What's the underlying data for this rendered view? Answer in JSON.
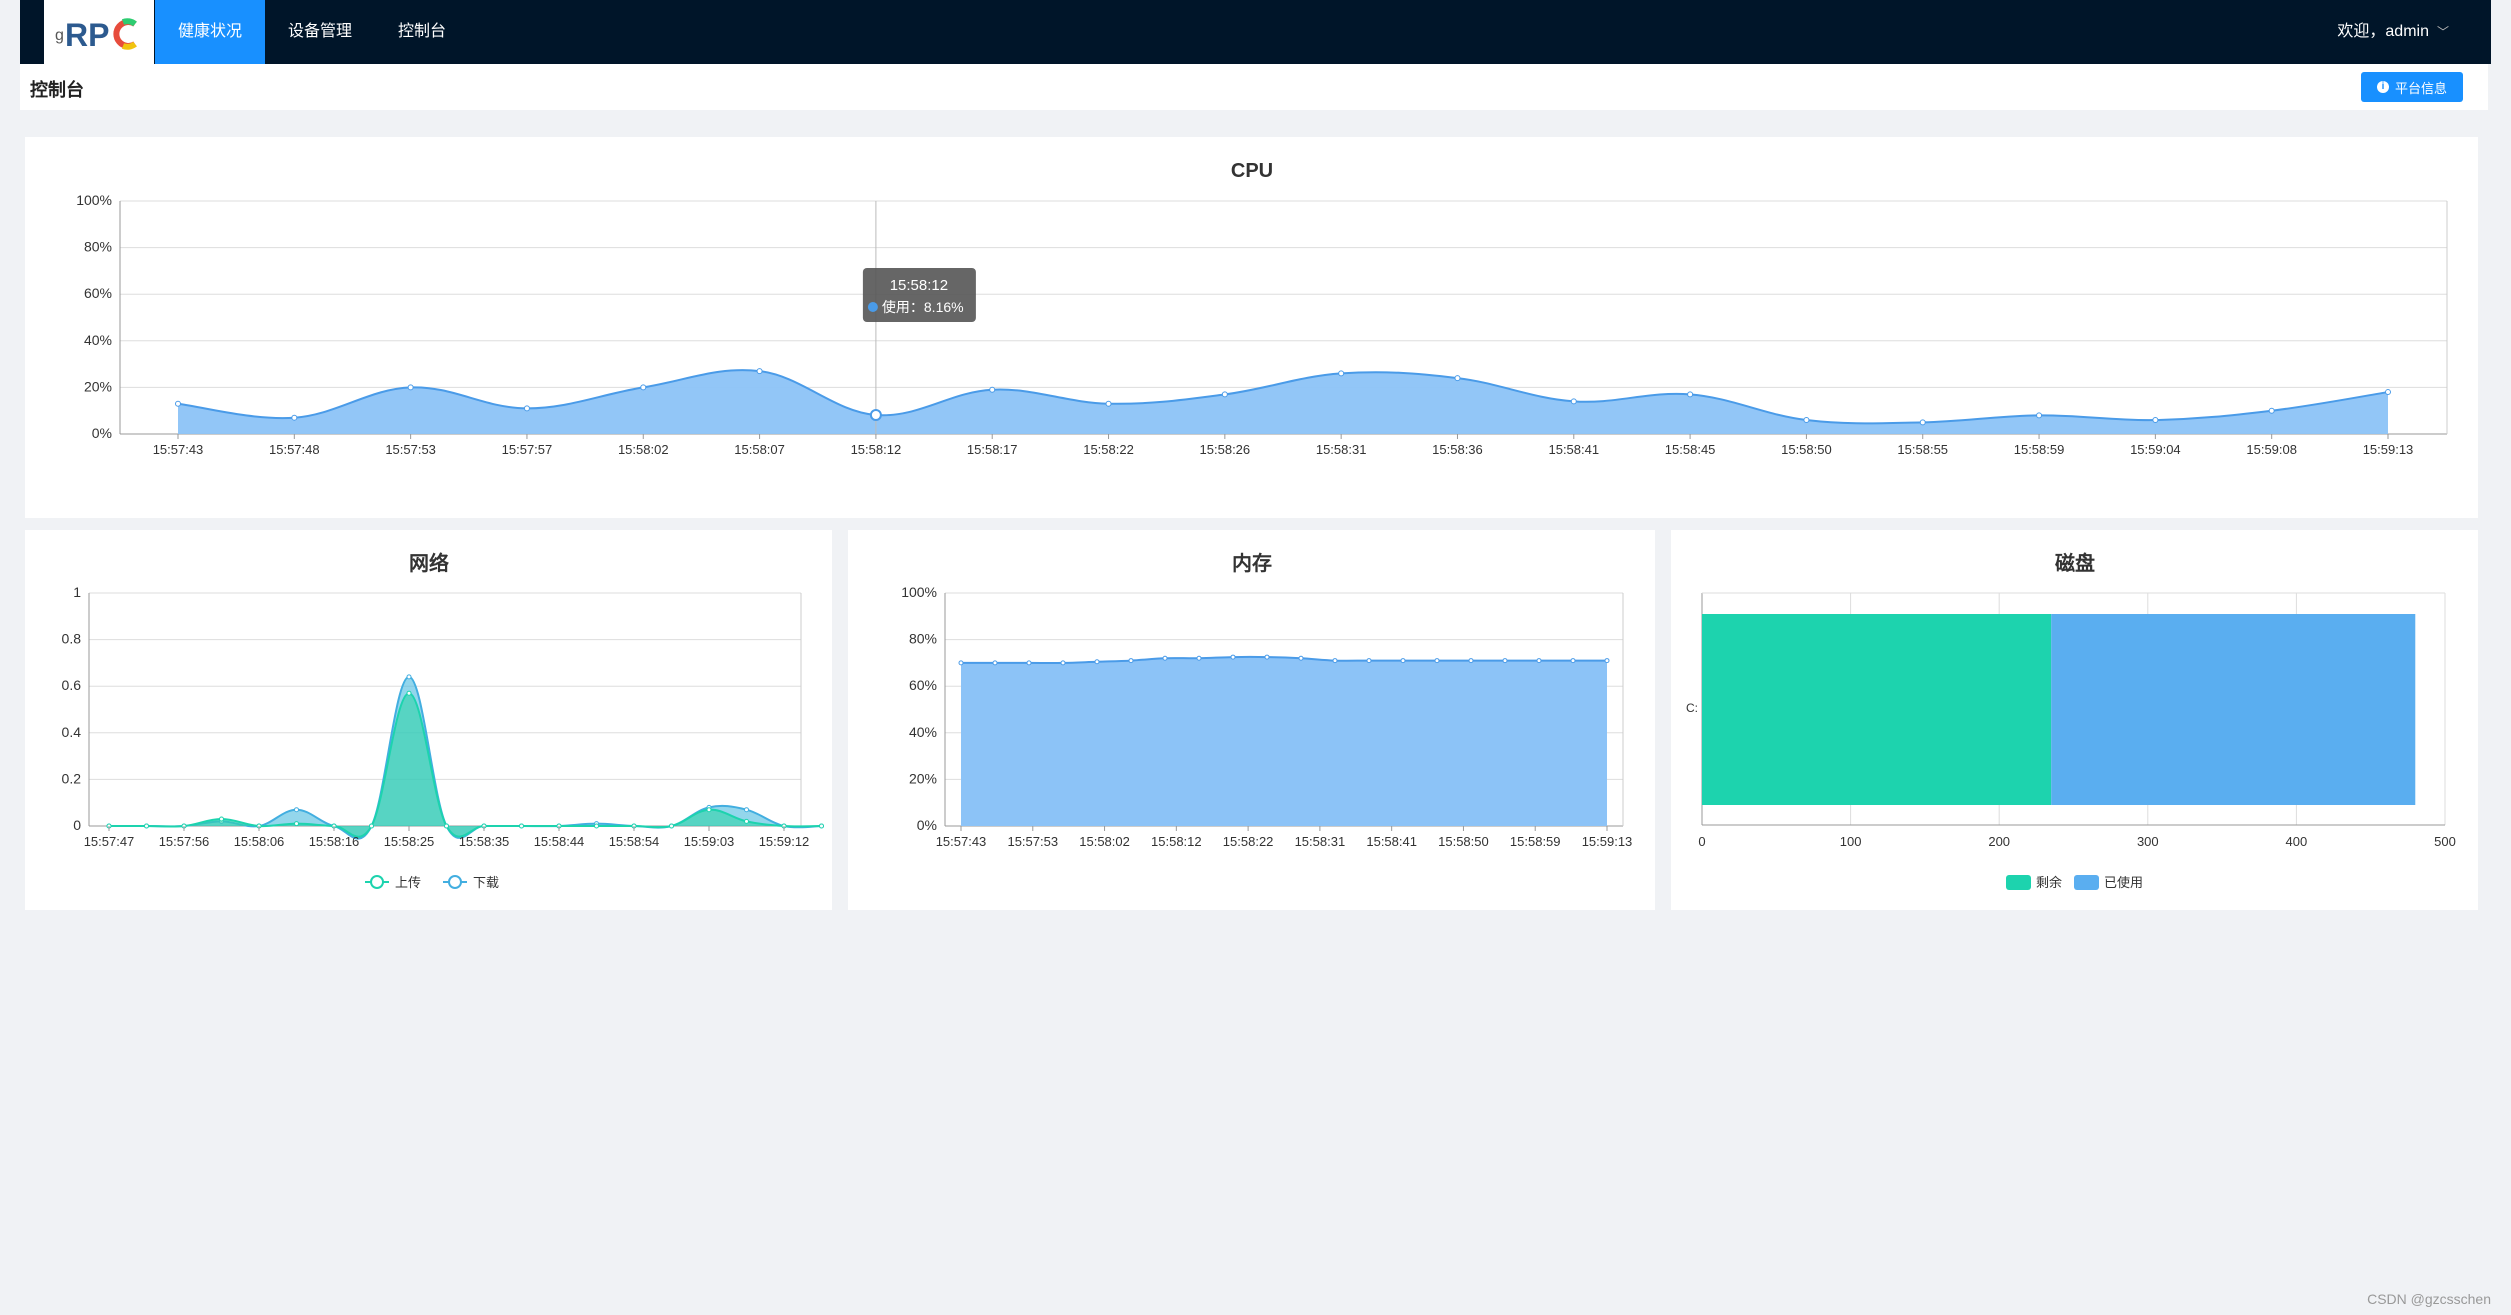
{
  "app": {
    "logo_text": "gRPC"
  },
  "nav": {
    "items": [
      {
        "label": "健康状况",
        "active": true
      },
      {
        "label": "设备管理",
        "active": false
      },
      {
        "label": "控制台",
        "active": false
      }
    ]
  },
  "user": {
    "greeting": "欢迎，admin"
  },
  "page": {
    "title": "控制台",
    "info_button": "平台信息"
  },
  "footer": {
    "watermark": "CSDN @gzcsschen"
  },
  "colors": {
    "accent": "#1890ff",
    "header_bg": "#001529",
    "series_blue": "#5aa7f0",
    "area_blue": "#8cc3f7",
    "teal": "#1dd3ae",
    "cyan": "#4bbbe0"
  },
  "chart_data": [
    {
      "id": "cpu",
      "type": "area",
      "title": "CPU",
      "ylim": [
        0,
        100
      ],
      "y_ticks": [
        "0%",
        "20%",
        "40%",
        "60%",
        "80%",
        "100%"
      ],
      "x_labels": [
        "15:57:43",
        "15:57:48",
        "15:57:53",
        "15:57:57",
        "15:58:02",
        "15:58:07",
        "15:58:12",
        "15:58:17",
        "15:58:22",
        "15:58:26",
        "15:58:31",
        "15:58:36",
        "15:58:41",
        "15:58:45",
        "15:58:50",
        "15:58:55",
        "15:58:59",
        "15:59:04",
        "15:59:08",
        "15:59:13"
      ],
      "series": [
        {
          "name": "使用",
          "values": [
            13,
            7,
            20,
            11,
            20,
            27,
            8.16,
            19,
            13,
            17,
            26,
            24,
            14,
            17,
            6,
            5,
            8,
            6,
            10,
            18
          ]
        }
      ],
      "tooltip": {
        "time": "15:58:12",
        "label": "使用",
        "value": "8.16%",
        "index": 6
      }
    },
    {
      "id": "network",
      "type": "area",
      "title": "网络",
      "ylim": [
        0,
        1
      ],
      "y_ticks": [
        "0",
        "0.2",
        "0.4",
        "0.6",
        "0.8",
        "1"
      ],
      "x_labels": [
        "15:57:47",
        "15:57:56",
        "15:58:06",
        "15:58:16",
        "15:58:25",
        "15:58:35",
        "15:58:44",
        "15:58:54",
        "15:59:03",
        "15:59:12"
      ],
      "points_x": [
        0,
        0.5,
        1,
        1.5,
        2,
        2.5,
        3,
        3.5,
        4,
        4.5,
        5,
        5.5,
        6,
        6.5,
        7,
        7.5,
        8,
        8.5,
        9,
        9.5
      ],
      "series": [
        {
          "name": "上传",
          "values": [
            0,
            0,
            0,
            0.03,
            0,
            0.01,
            0,
            0,
            0.57,
            0,
            0,
            0,
            0,
            0,
            0,
            0,
            0.07,
            0.02,
            0,
            0
          ]
        },
        {
          "name": "下载",
          "values": [
            0,
            0,
            0,
            0.02,
            0,
            0.07,
            0,
            0,
            0.64,
            0,
            0,
            0,
            0,
            0.01,
            0,
            0,
            0.08,
            0.07,
            0,
            0
          ]
        }
      ],
      "legend": [
        "上传",
        "下载"
      ]
    },
    {
      "id": "memory",
      "type": "area",
      "title": "内存",
      "ylim": [
        0,
        100
      ],
      "y_ticks": [
        "0%",
        "20%",
        "40%",
        "60%",
        "80%",
        "100%"
      ],
      "x_labels": [
        "15:57:43",
        "15:57:53",
        "15:58:02",
        "15:58:12",
        "15:58:22",
        "15:58:31",
        "15:58:41",
        "15:58:50",
        "15:58:59",
        "15:59:13"
      ],
      "series": [
        {
          "name": "内存",
          "values": [
            70,
            70,
            70,
            70,
            70.5,
            71,
            72,
            72,
            72.5,
            72.5,
            72,
            71,
            71,
            71,
            71,
            71,
            71,
            71,
            71,
            71
          ]
        }
      ]
    },
    {
      "id": "disk",
      "type": "bar",
      "orientation": "horizontal",
      "title": "磁盘",
      "categories": [
        "C:"
      ],
      "xlim": [
        0,
        500
      ],
      "x_ticks": [
        "0",
        "100",
        "200",
        "300",
        "400",
        "500"
      ],
      "series": [
        {
          "name": "剩余",
          "values": [
            235
          ]
        },
        {
          "name": "已使用",
          "values": [
            245
          ]
        }
      ],
      "legend": [
        "剩余",
        "已使用"
      ]
    }
  ]
}
